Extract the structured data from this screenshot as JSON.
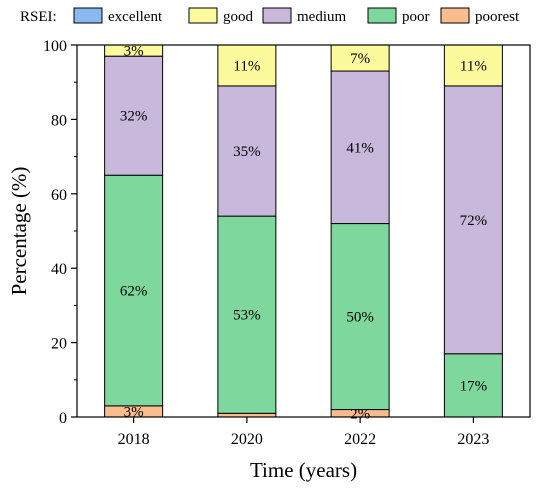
{
  "chart_data": {
    "type": "bar",
    "stacked": true,
    "categories": [
      "2018",
      "2020",
      "2022",
      "2023"
    ],
    "series": [
      {
        "name": "excellent",
        "values": [
          0,
          0,
          0,
          0
        ],
        "labels": [
          "",
          "",
          "",
          ""
        ]
      },
      {
        "name": "poorest",
        "values": [
          3,
          1,
          2,
          0
        ],
        "labels": [
          "3%",
          "",
          "2%",
          ""
        ]
      },
      {
        "name": "poor",
        "values": [
          62,
          53,
          50,
          17
        ],
        "labels": [
          "62%",
          "53%",
          "50%",
          "17%"
        ]
      },
      {
        "name": "medium",
        "values": [
          32,
          35,
          41,
          72
        ],
        "labels": [
          "32%",
          "35%",
          "41%",
          "72%"
        ]
      },
      {
        "name": "good",
        "values": [
          3,
          11,
          7,
          11
        ],
        "labels": [
          "3%",
          "11%",
          "7%",
          "11%"
        ]
      }
    ],
    "legend": {
      "title": "RSEI:",
      "order": [
        "excellent",
        "good",
        "medium",
        "poor",
        "poorest"
      ],
      "placement": "top"
    },
    "colors": {
      "excellent": "#8ab8f0",
      "good": "#fdfa9e",
      "medium": "#c8b8dc",
      "poor": "#7ed79d",
      "poorest": "#fbbd8d"
    },
    "xlabel": "Time (years)",
    "ylabel": "Percentage (%)",
    "ylim": [
      0,
      100
    ],
    "yticks": [
      0,
      20,
      40,
      60,
      80,
      100
    ],
    "grid": false
  }
}
